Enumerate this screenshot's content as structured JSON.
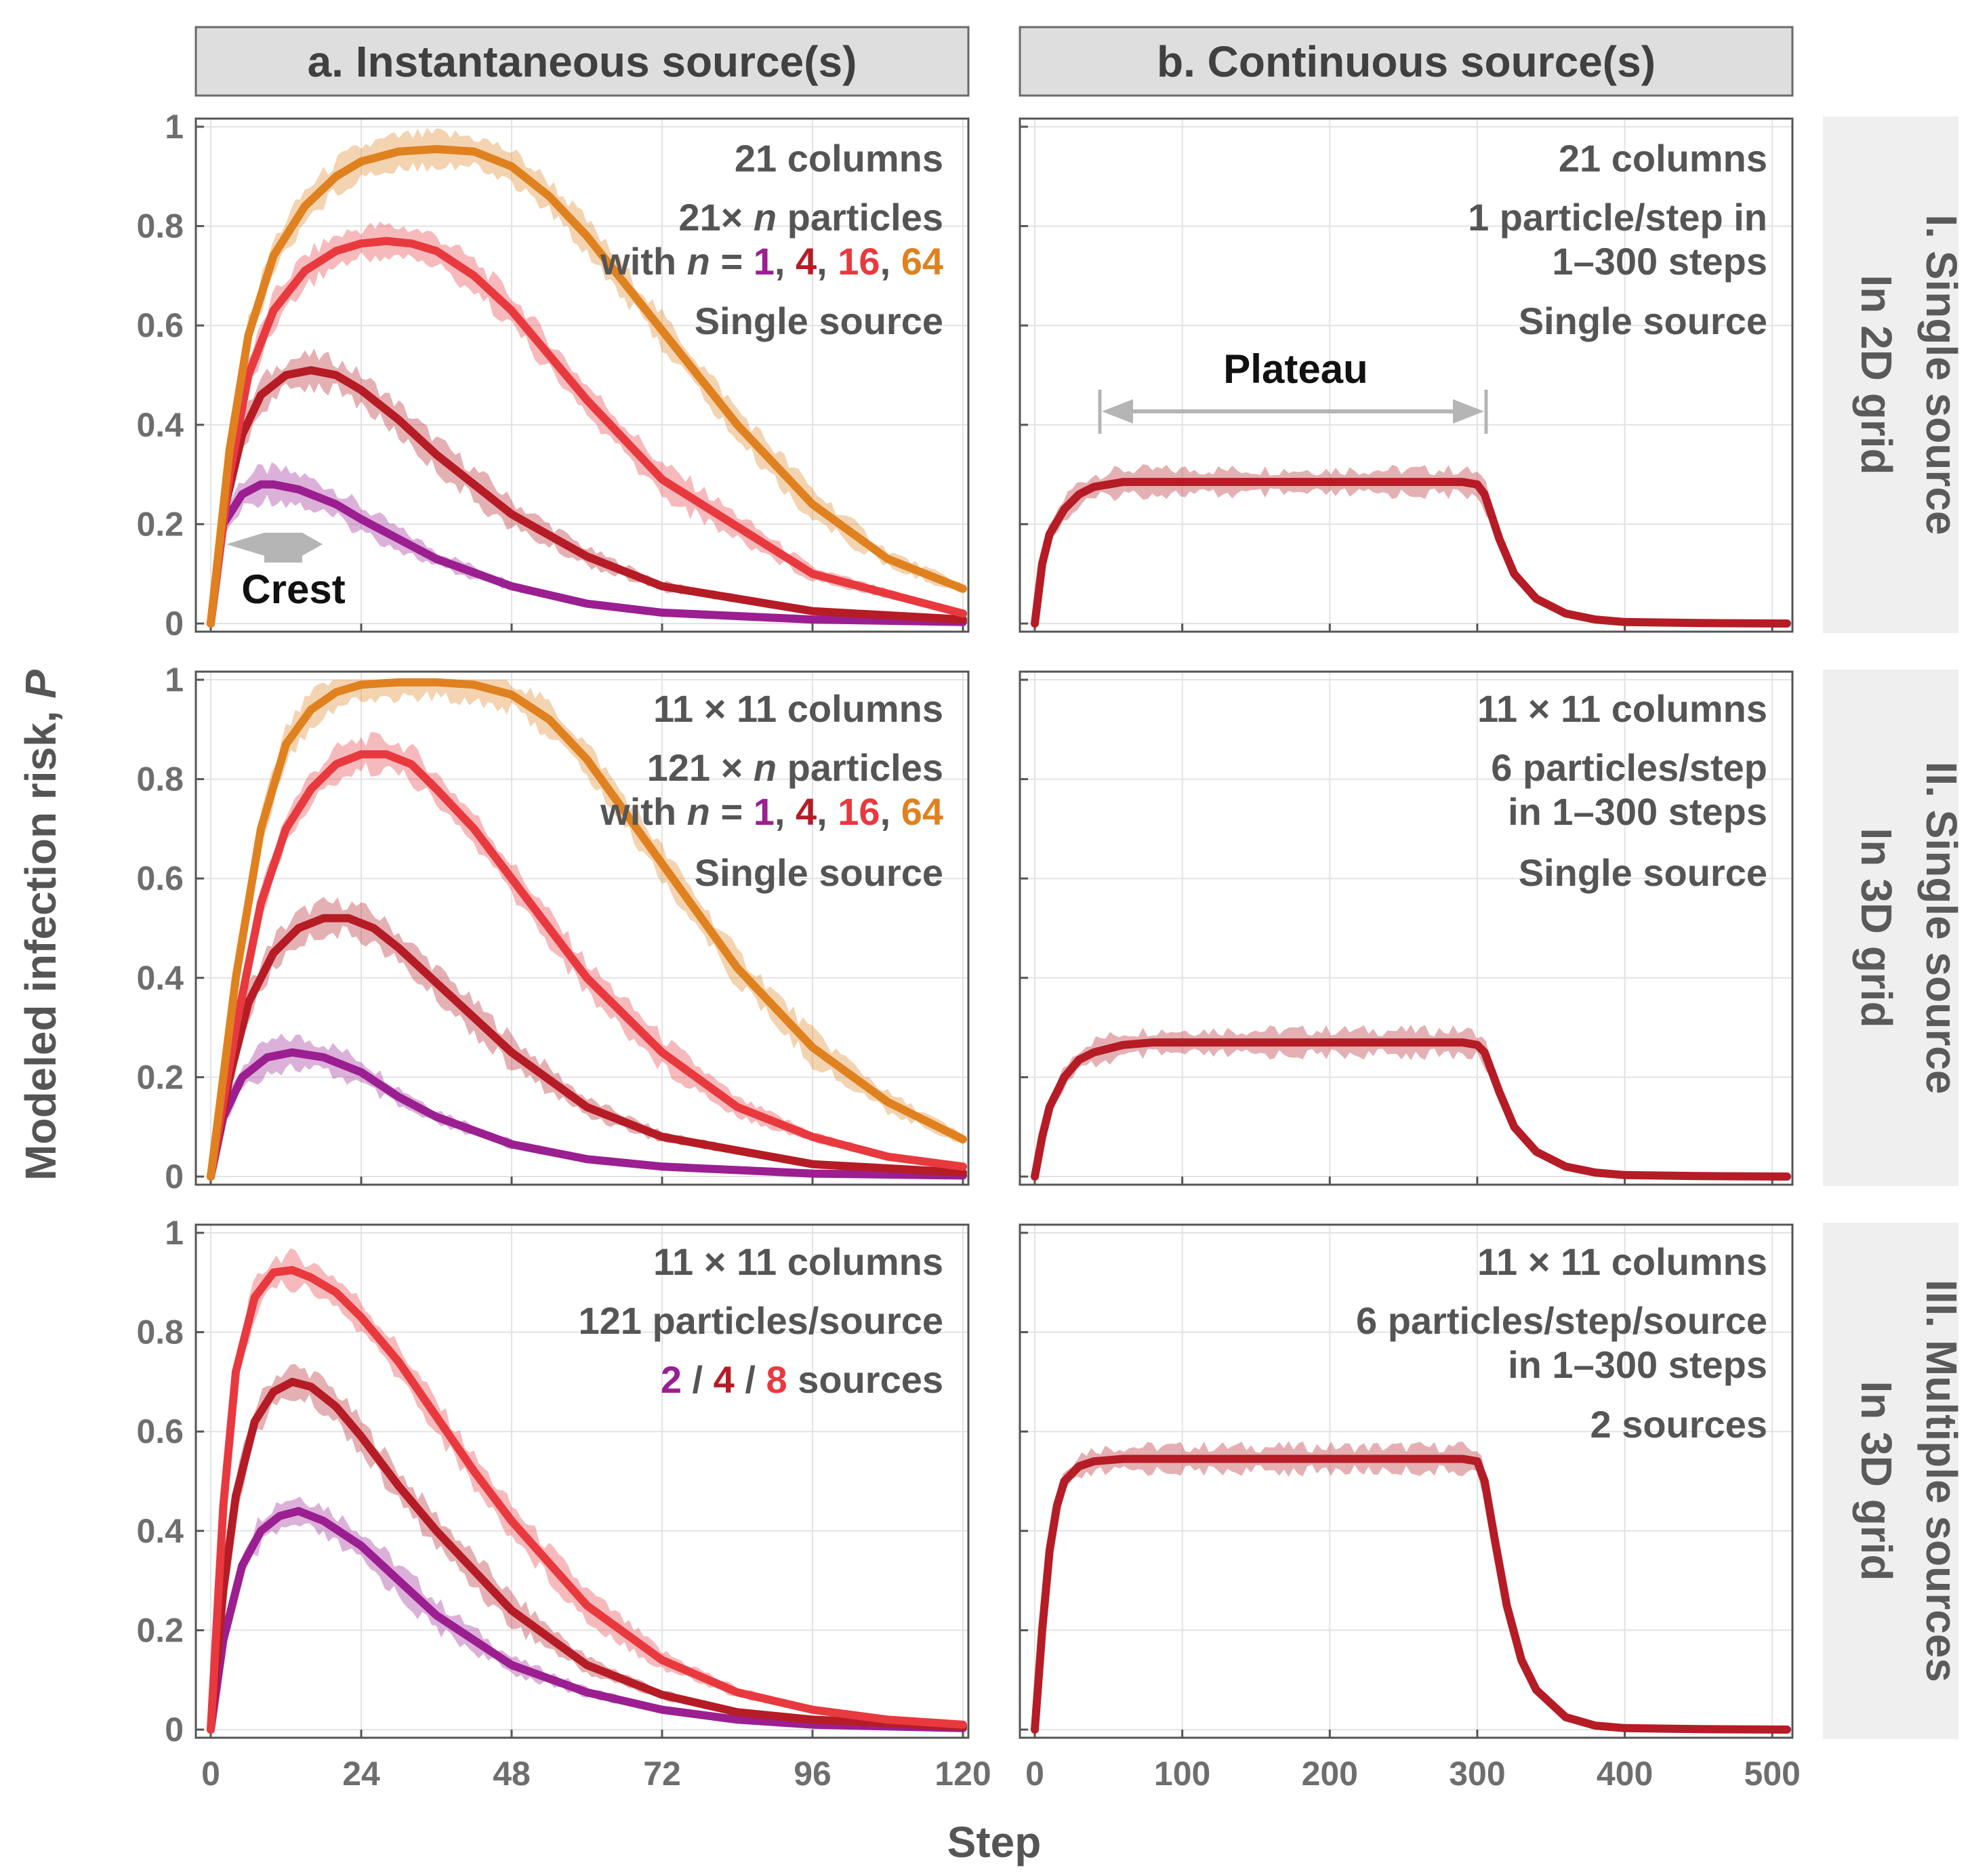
{
  "columns": [
    {
      "title": "a. Instantaneous source(s)"
    },
    {
      "title": "b. Continuous source(s)"
    }
  ],
  "rows": [
    {
      "line1": "I. Single source",
      "line2": "In 2D grid"
    },
    {
      "line1": "II. Single source",
      "line2": "In 3D grid"
    },
    {
      "line1": "III. Multiple sources",
      "line2": "In 3D grid"
    }
  ],
  "axes": {
    "ylabel_text": "Modeled infection risk, ",
    "ylabel_symbol": "P",
    "xlabel": "Step",
    "yticks": [
      "0",
      "0.2",
      "0.4",
      "0.6",
      "0.8",
      "1"
    ],
    "xticks_a": [
      "0",
      "24",
      "48",
      "72",
      "96",
      "120"
    ],
    "xticks_b": [
      "0",
      "100",
      "200",
      "300",
      "400",
      "500"
    ]
  },
  "colors": {
    "n1": "#9b1f91",
    "n4": "#b51c25",
    "n16": "#e8393f",
    "n64": "#e0811f",
    "annotation_gray": "#b5b5b5"
  },
  "annotations": {
    "crest": "Crest",
    "plateau": "Plateau",
    "I_a": {
      "lines": [
        "21 columns"
      ],
      "particles_prefix": "21× ",
      "particles_var": "n",
      "particles_suffix": " particles",
      "with_prefix": "with ",
      "with_var": "n",
      "with_eq": " = ",
      "values": [
        "1",
        "4",
        "16",
        "64"
      ],
      "sep": ", ",
      "source": "Single source"
    },
    "I_b": [
      "21 columns",
      "1 particle/step in",
      "1–300 steps",
      "Single source"
    ],
    "II_a": {
      "lines": [
        "11 × 11 columns"
      ],
      "particles_prefix": "121 × ",
      "particles_var": "n",
      "particles_suffix": " particles",
      "with_prefix": "with ",
      "with_var": "n",
      "with_eq": " = ",
      "values": [
        "1",
        "4",
        "16",
        "64"
      ],
      "sep": ", ",
      "source": "Single source"
    },
    "II_b": [
      "11 × 11 columns",
      "6 particles/step",
      "in 1–300 steps",
      "Single source"
    ],
    "III_a": {
      "lines": [
        "11 × 11 columns",
        "121 particles/source"
      ],
      "values": [
        "2",
        "4",
        "8"
      ],
      "sep": " / ",
      "suffix": " sources"
    },
    "III_b": [
      "11 × 11 columns",
      "6 particles/step/source",
      "in 1–300 steps",
      "2 sources"
    ]
  },
  "chart_data": [
    {
      "id": "I-a",
      "type": "line",
      "xlim": [
        0,
        120
      ],
      "ylim": [
        0,
        1
      ],
      "x_ticks": [
        0,
        24,
        48,
        72,
        96,
        120
      ],
      "grid": true,
      "series": [
        {
          "name": "1",
          "color": "#9b1f91",
          "x": [
            0,
            2,
            5,
            8,
            10,
            14,
            20,
            24,
            30,
            36,
            48,
            60,
            72,
            96,
            120
          ],
          "y": [
            0,
            0.2,
            0.26,
            0.28,
            0.28,
            0.27,
            0.24,
            0.21,
            0.17,
            0.13,
            0.075,
            0.04,
            0.022,
            0.008,
            0.003
          ]
        },
        {
          "name": "4",
          "color": "#b51c25",
          "x": [
            0,
            2,
            5,
            8,
            12,
            16,
            20,
            24,
            30,
            36,
            48,
            60,
            72,
            96,
            120
          ],
          "y": [
            0,
            0.22,
            0.38,
            0.46,
            0.5,
            0.51,
            0.5,
            0.47,
            0.41,
            0.34,
            0.22,
            0.135,
            0.075,
            0.025,
            0.008
          ]
        },
        {
          "name": "16",
          "color": "#e8393f",
          "x": [
            0,
            3,
            6,
            10,
            15,
            20,
            24,
            28,
            32,
            36,
            42,
            48,
            60,
            72,
            96,
            120
          ],
          "y": [
            0,
            0.3,
            0.5,
            0.63,
            0.71,
            0.75,
            0.765,
            0.77,
            0.765,
            0.75,
            0.7,
            0.63,
            0.45,
            0.29,
            0.1,
            0.02
          ]
        },
        {
          "name": "64",
          "color": "#e0811f",
          "x": [
            0,
            3,
            6,
            10,
            15,
            20,
            24,
            30,
            36,
            42,
            48,
            54,
            60,
            72,
            84,
            96,
            108,
            120
          ],
          "y": [
            0,
            0.35,
            0.58,
            0.74,
            0.84,
            0.9,
            0.93,
            0.95,
            0.955,
            0.95,
            0.92,
            0.86,
            0.78,
            0.59,
            0.4,
            0.24,
            0.13,
            0.07
          ]
        }
      ]
    },
    {
      "id": "I-b",
      "type": "line",
      "xlim": [
        0,
        510
      ],
      "ylim": [
        0,
        1
      ],
      "x_ticks": [
        0,
        100,
        200,
        300,
        400,
        500
      ],
      "grid": true,
      "series": [
        {
          "name": "",
          "color": "#b51c25",
          "x": [
            0,
            5,
            10,
            20,
            30,
            40,
            60,
            80,
            100,
            150,
            200,
            250,
            290,
            300,
            305,
            315,
            325,
            340,
            360,
            380,
            400,
            450,
            510
          ],
          "y": [
            0,
            0.12,
            0.18,
            0.23,
            0.26,
            0.275,
            0.285,
            0.285,
            0.285,
            0.285,
            0.285,
            0.285,
            0.285,
            0.28,
            0.26,
            0.17,
            0.1,
            0.05,
            0.02,
            0.008,
            0.003,
            0.001,
            0.0
          ]
        }
      ]
    },
    {
      "id": "II-a",
      "type": "line",
      "xlim": [
        0,
        120
      ],
      "ylim": [
        0,
        1
      ],
      "x_ticks": [
        0,
        24,
        48,
        72,
        96,
        120
      ],
      "grid": true,
      "series": [
        {
          "name": "1",
          "color": "#9b1f91",
          "x": [
            0,
            2,
            5,
            9,
            13,
            18,
            24,
            30,
            36,
            48,
            60,
            72,
            96,
            120
          ],
          "y": [
            0,
            0.12,
            0.2,
            0.24,
            0.25,
            0.24,
            0.21,
            0.16,
            0.12,
            0.065,
            0.035,
            0.02,
            0.006,
            0.002
          ]
        },
        {
          "name": "4",
          "color": "#b51c25",
          "x": [
            0,
            3,
            6,
            10,
            14,
            18,
            22,
            26,
            30,
            36,
            48,
            60,
            72,
            96,
            120
          ],
          "y": [
            0,
            0.2,
            0.35,
            0.45,
            0.5,
            0.52,
            0.52,
            0.5,
            0.46,
            0.39,
            0.25,
            0.14,
            0.08,
            0.025,
            0.008
          ]
        },
        {
          "name": "16",
          "color": "#e8393f",
          "x": [
            0,
            4,
            8,
            12,
            16,
            20,
            24,
            28,
            32,
            36,
            42,
            48,
            60,
            72,
            84,
            96,
            108,
            120
          ],
          "y": [
            0,
            0.3,
            0.55,
            0.7,
            0.78,
            0.83,
            0.85,
            0.85,
            0.83,
            0.78,
            0.7,
            0.6,
            0.4,
            0.25,
            0.14,
            0.08,
            0.04,
            0.02
          ]
        },
        {
          "name": "64",
          "color": "#e0811f",
          "x": [
            0,
            4,
            8,
            12,
            16,
            20,
            24,
            30,
            36,
            42,
            48,
            54,
            60,
            72,
            84,
            96,
            108,
            120
          ],
          "y": [
            0,
            0.4,
            0.7,
            0.87,
            0.94,
            0.975,
            0.99,
            0.995,
            0.995,
            0.99,
            0.97,
            0.92,
            0.84,
            0.63,
            0.42,
            0.26,
            0.15,
            0.075
          ]
        }
      ]
    },
    {
      "id": "II-b",
      "type": "line",
      "xlim": [
        0,
        510
      ],
      "ylim": [
        0,
        1
      ],
      "x_ticks": [
        0,
        100,
        200,
        300,
        400,
        500
      ],
      "grid": true,
      "series": [
        {
          "name": "",
          "color": "#b51c25",
          "x": [
            0,
            5,
            10,
            20,
            30,
            40,
            60,
            80,
            100,
            150,
            200,
            250,
            290,
            300,
            305,
            315,
            325,
            340,
            360,
            380,
            400,
            450,
            510
          ],
          "y": [
            0,
            0.08,
            0.14,
            0.2,
            0.235,
            0.25,
            0.265,
            0.27,
            0.27,
            0.27,
            0.27,
            0.27,
            0.27,
            0.265,
            0.25,
            0.17,
            0.1,
            0.05,
            0.02,
            0.008,
            0.003,
            0.001,
            0.0
          ]
        }
      ]
    },
    {
      "id": "III-a",
      "type": "line",
      "xlim": [
        0,
        120
      ],
      "ylim": [
        0,
        1
      ],
      "x_ticks": [
        0,
        24,
        48,
        72,
        96,
        120
      ],
      "grid": true,
      "series": [
        {
          "name": "2",
          "color": "#9b1f91",
          "x": [
            0,
            2,
            5,
            8,
            11,
            14,
            18,
            24,
            30,
            36,
            48,
            60,
            72,
            84,
            96,
            120
          ],
          "y": [
            0,
            0.18,
            0.33,
            0.4,
            0.43,
            0.44,
            0.42,
            0.37,
            0.3,
            0.23,
            0.13,
            0.075,
            0.04,
            0.02,
            0.01,
            0.003
          ]
        },
        {
          "name": "4",
          "color": "#b51c25",
          "x": [
            0,
            2,
            4,
            7,
            10,
            13,
            16,
            20,
            24,
            30,
            36,
            48,
            60,
            72,
            84,
            96,
            120
          ],
          "y": [
            0,
            0.28,
            0.47,
            0.62,
            0.68,
            0.7,
            0.69,
            0.65,
            0.59,
            0.49,
            0.4,
            0.24,
            0.13,
            0.07,
            0.035,
            0.02,
            0.006
          ]
        },
        {
          "name": "8",
          "color": "#e8393f",
          "x": [
            0,
            2,
            4,
            7,
            10,
            13,
            16,
            20,
            24,
            30,
            36,
            42,
            48,
            60,
            72,
            84,
            96,
            108,
            120
          ],
          "y": [
            0,
            0.45,
            0.72,
            0.87,
            0.92,
            0.925,
            0.91,
            0.88,
            0.83,
            0.74,
            0.63,
            0.52,
            0.42,
            0.25,
            0.14,
            0.075,
            0.04,
            0.02,
            0.01
          ]
        }
      ]
    },
    {
      "id": "III-b",
      "type": "line",
      "xlim": [
        0,
        510
      ],
      "ylim": [
        0,
        1
      ],
      "x_ticks": [
        0,
        100,
        200,
        300,
        400,
        500
      ],
      "grid": true,
      "series": [
        {
          "name": "",
          "color": "#b51c25",
          "x": [
            0,
            5,
            10,
            15,
            20,
            30,
            40,
            60,
            100,
            150,
            200,
            250,
            290,
            300,
            305,
            312,
            320,
            330,
            340,
            360,
            380,
            400,
            450,
            510
          ],
          "y": [
            0,
            0.2,
            0.36,
            0.45,
            0.5,
            0.53,
            0.54,
            0.545,
            0.545,
            0.545,
            0.545,
            0.545,
            0.545,
            0.54,
            0.5,
            0.38,
            0.25,
            0.14,
            0.08,
            0.025,
            0.008,
            0.003,
            0.001,
            0.0
          ]
        }
      ]
    }
  ]
}
